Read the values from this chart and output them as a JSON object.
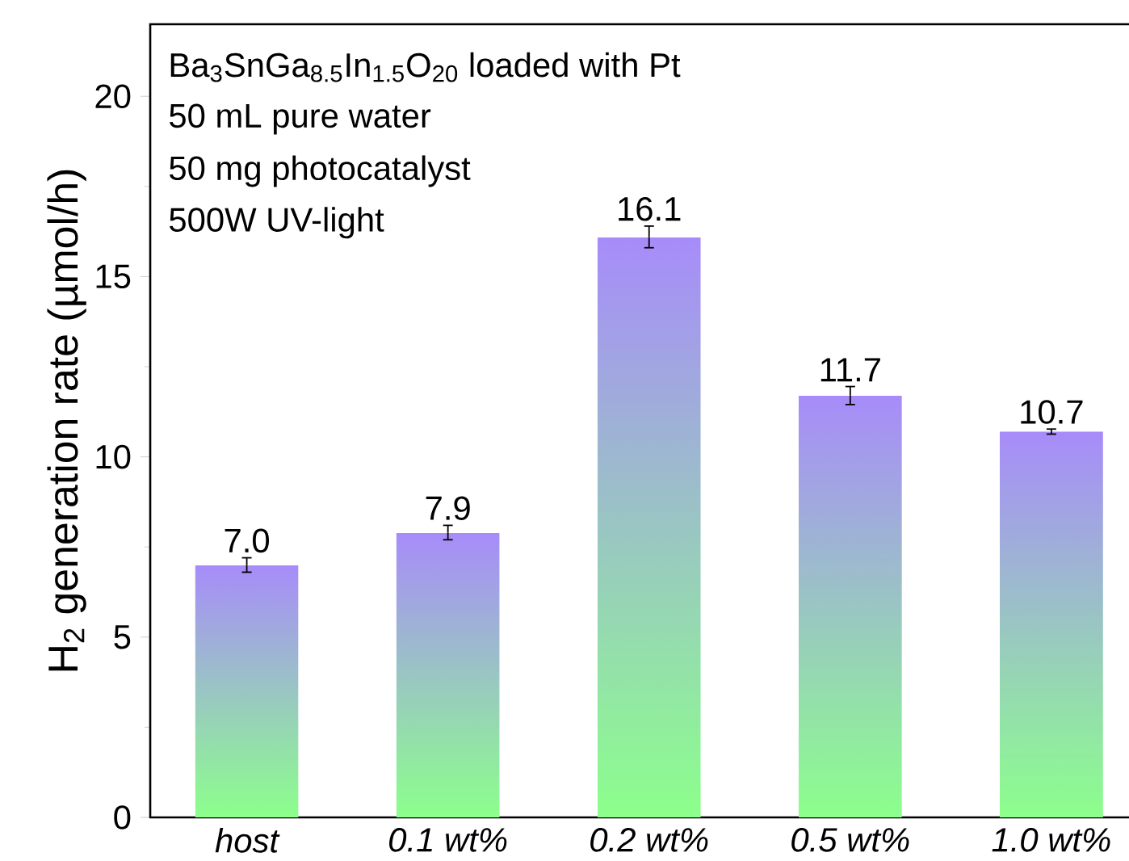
{
  "chart_data": {
    "type": "bar",
    "ylabel": "H$_{2}$ generation rate (µmol/h)",
    "categories": [
      "host",
      "0.1 wt%",
      "0.2 wt%",
      "0.5 wt%",
      "1.0 wt%"
    ],
    "values": [
      7.0,
      7.9,
      16.1,
      11.7,
      10.7
    ],
    "errors": [
      0.2,
      0.2,
      0.3,
      0.25,
      0.07
    ],
    "color": "#a78bfa",
    "value_labels": [
      "7.0",
      "7.9",
      "16.1",
      "11.7",
      "10.7"
    ],
    "ylim": [
      0,
      22
    ],
    "yticks": [
      0,
      5,
      10,
      15,
      20
    ],
    "annotations": [
      "Ba$_{3}$SnGa$_{8.5}$In$_{1.5}$O$_{20}$ loaded with Pt",
      "50 mL pure water",
      "50 mg photocatalyst",
      "500W UV-light"
    ]
  }
}
